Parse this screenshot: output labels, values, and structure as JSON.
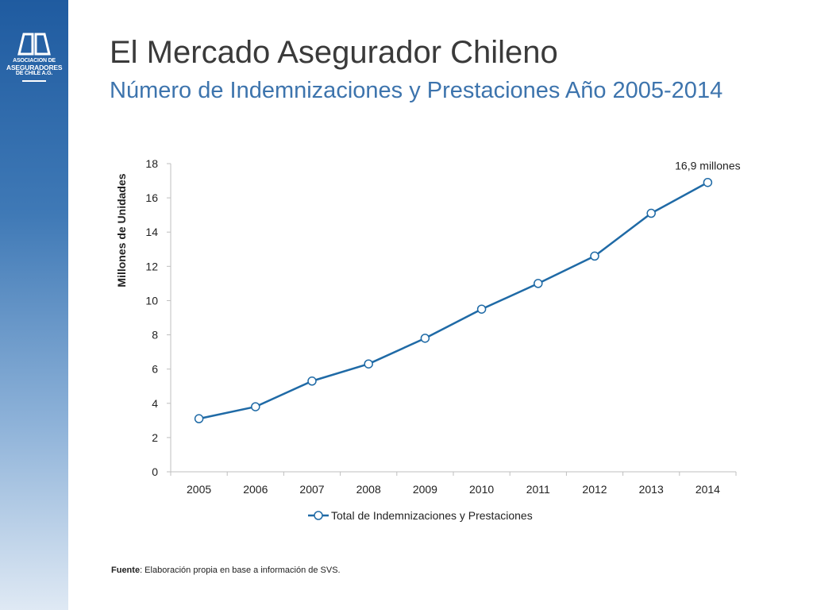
{
  "header": {
    "title": "El Mercado Asegurador Chileno",
    "subtitle": "Número de Indemnizaciones y Prestaciones Año 2005-2014"
  },
  "logo": {
    "line1": "ASOCIACION DE",
    "line2": "ASEGURADORES",
    "line3": "DE CHILE A.G."
  },
  "footer": {
    "label": "Fuente",
    "text": ": Elaboración propia en base a información de SVS."
  },
  "colors": {
    "series": "#1f6aa6",
    "marker_fill": "#ffffff",
    "axis": "#bfbfbf"
  },
  "chart_data": {
    "type": "line",
    "title": "",
    "xlabel": "",
    "ylabel": "Millones de Unidades",
    "ylim": [
      0,
      18
    ],
    "yticks": [
      0,
      2,
      4,
      6,
      8,
      10,
      12,
      14,
      16,
      18
    ],
    "grid": false,
    "legend_position": "bottom",
    "categories": [
      "2005",
      "2006",
      "2007",
      "2008",
      "2009",
      "2010",
      "2011",
      "2012",
      "2013",
      "2014"
    ],
    "series": [
      {
        "name": "Total de Indemnizaciones y Prestaciones",
        "values": [
          3.1,
          3.8,
          5.3,
          6.3,
          7.8,
          9.5,
          11.0,
          12.6,
          15.1,
          16.9
        ]
      }
    ],
    "annotations": [
      {
        "category": "2014",
        "text": "16,9 millones"
      }
    ]
  }
}
